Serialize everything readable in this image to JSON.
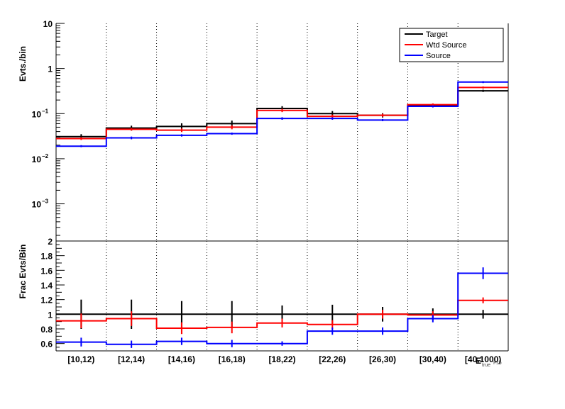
{
  "chart_data": [
    {
      "type": "step",
      "panel": "upper",
      "ylabel": "Evts./bin",
      "yscale": "log",
      "ylim": [
        0.00015,
        10
      ],
      "y_ticks": [
        {
          "value": 10,
          "label": "10"
        },
        {
          "value": 1,
          "label": "1"
        },
        {
          "value": 0.1,
          "label": "10",
          "sup": "−1"
        },
        {
          "value": 0.01,
          "label": "10",
          "sup": "−2"
        },
        {
          "value": 0.001,
          "label": "10",
          "sup": "−3"
        }
      ],
      "categories": [
        "[10,12)",
        "[12,14)",
        "[14,16)",
        "[16,18)",
        "[18,22)",
        "[22,26)",
        "[26,30)",
        "[30,40)",
        "[40,1000)"
      ],
      "legend_position": "top-right",
      "series": [
        {
          "name": "Target",
          "color": "#000000",
          "values": [
            0.031,
            0.048,
            0.052,
            0.06,
            0.13,
            0.1,
            0.092,
            0.155,
            0.32
          ],
          "errors": [
            0.004,
            0.006,
            0.009,
            0.01,
            0.016,
            0.014,
            0.01,
            0.012,
            0.018
          ]
        },
        {
          "name": "Wtd Source",
          "color": "#ff0000",
          "values": [
            0.028,
            0.045,
            0.043,
            0.05,
            0.118,
            0.087,
            0.092,
            0.158,
            0.38
          ],
          "errors": [
            0.002,
            0.003,
            0.004,
            0.005,
            0.01,
            0.008,
            0.007,
            0.01,
            0.02
          ]
        },
        {
          "name": "Source",
          "color": "#0000ff",
          "values": [
            0.019,
            0.029,
            0.033,
            0.036,
            0.078,
            0.078,
            0.072,
            0.145,
            0.5
          ],
          "errors": [
            0.001,
            0.002,
            0.002,
            0.002,
            0.005,
            0.005,
            0.004,
            0.008,
            0.025
          ]
        }
      ]
    },
    {
      "type": "step",
      "panel": "lower",
      "ylabel": "Frac Evts/Bin",
      "ylim": [
        0.5,
        2.0
      ],
      "y_ticks": [
        0.6,
        0.8,
        1,
        1.2,
        1.4,
        1.6,
        1.8,
        2
      ],
      "categories": [
        "[10,12)",
        "[12,14)",
        "[14,16)",
        "[16,18)",
        "[18,22)",
        "[22,26)",
        "[26,30)",
        "[30,40)",
        "[40,1000)"
      ],
      "series": [
        {
          "name": "Target",
          "color": "#000000",
          "values": [
            1,
            1,
            1,
            1,
            1,
            1,
            1,
            1,
            1
          ],
          "errors": [
            0.2,
            0.2,
            0.18,
            0.18,
            0.12,
            0.13,
            0.1,
            0.08,
            0.06
          ]
        },
        {
          "name": "Wtd Source",
          "color": "#ff0000",
          "values": [
            0.91,
            0.94,
            0.81,
            0.82,
            0.88,
            0.86,
            1.0,
            0.99,
            1.19
          ],
          "errors": [
            0.1,
            0.1,
            0.08,
            0.08,
            0.06,
            0.06,
            0.06,
            0.05,
            0.04
          ]
        },
        {
          "name": "Source",
          "color": "#0000ff",
          "values": [
            0.62,
            0.59,
            0.63,
            0.6,
            0.6,
            0.77,
            0.77,
            0.94,
            1.56
          ],
          "errors": [
            0.06,
            0.05,
            0.05,
            0.05,
            0.03,
            0.05,
            0.05,
            0.05,
            0.08
          ]
        }
      ]
    }
  ],
  "legend": {
    "entries": [
      "Target",
      "Wtd Source",
      "Source"
    ]
  },
  "x_axis_label": "E_{true}^{Fsb}"
}
